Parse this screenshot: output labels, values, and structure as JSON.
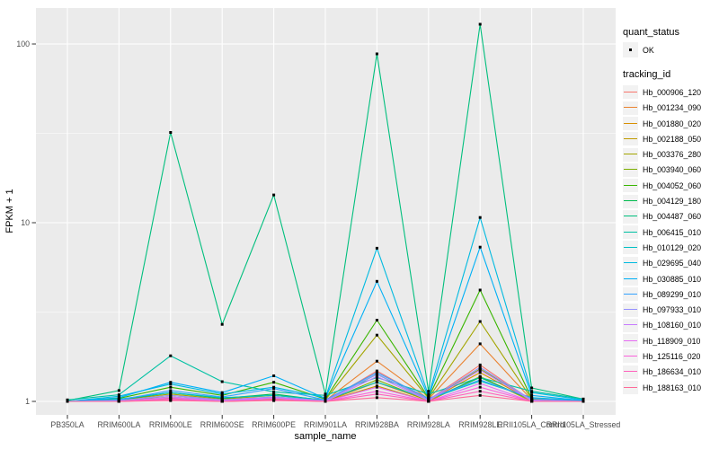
{
  "chart_data": {
    "type": "line",
    "title": "",
    "xlabel": "sample_name",
    "ylabel": "FPKM + 1",
    "y_scale": "log10",
    "y_ticks": [
      1,
      10,
      100
    ],
    "y_minor_ticks": [
      3.1623,
      31.623
    ],
    "ylim": [
      0.9,
      160
    ],
    "grid": "white major/minor on grey panel",
    "legend_position": "right",
    "point_color": "#000000",
    "categories": [
      "PB350LA",
      "RRIM600LA",
      "RRIM600LE",
      "RRIM600SE",
      "RRIM600PE",
      "RRIM901LA",
      "RRIM928BA",
      "RRIM928LA",
      "RRIM928LE",
      "RRII105LA_Control",
      "RRII105LA_Stressed"
    ],
    "series": [
      {
        "name": "Hb_000906_120",
        "color": "#F8766D",
        "values": [
          1.0,
          1.0,
          1.04,
          1.01,
          1.03,
          1.0,
          1.48,
          1.02,
          1.6,
          1.01,
          1.0
        ]
      },
      {
        "name": "Hb_001234_090",
        "color": "#EA8331",
        "values": [
          1.0,
          1.01,
          1.08,
          1.02,
          1.06,
          1.01,
          1.68,
          1.03,
          2.1,
          1.02,
          1.01
        ]
      },
      {
        "name": "Hb_001880_020",
        "color": "#D89000",
        "values": [
          1.0,
          1.0,
          1.05,
          1.01,
          1.04,
          1.0,
          1.28,
          1.01,
          1.45,
          1.01,
          1.0
        ]
      },
      {
        "name": "Hb_002188_050",
        "color": "#C09B00",
        "values": [
          1.0,
          1.0,
          1.04,
          1.0,
          1.03,
          1.0,
          1.22,
          1.0,
          1.38,
          1.0,
          1.0
        ]
      },
      {
        "name": "Hb_003376_280",
        "color": "#A3A500",
        "values": [
          1.0,
          1.02,
          1.1,
          1.03,
          1.08,
          1.02,
          2.35,
          1.04,
          2.8,
          1.03,
          1.01
        ]
      },
      {
        "name": "Hb_003940_060",
        "color": "#7CAE00",
        "values": [
          1.0,
          1.01,
          1.06,
          1.01,
          1.05,
          1.0,
          1.32,
          1.01,
          1.52,
          1.01,
          1.0
        ]
      },
      {
        "name": "Hb_004052_060",
        "color": "#39B600",
        "values": [
          1.0,
          1.04,
          1.2,
          1.08,
          1.28,
          1.03,
          2.85,
          1.05,
          4.2,
          1.04,
          1.01
        ]
      },
      {
        "name": "Hb_004129_180",
        "color": "#00BB4E",
        "values": [
          1.0,
          1.02,
          1.12,
          1.04,
          1.1,
          1.01,
          1.42,
          1.02,
          1.36,
          1.02,
          1.0
        ]
      },
      {
        "name": "Hb_004487_060",
        "color": "#00BF7D",
        "values": [
          1.01,
          1.15,
          32.0,
          2.7,
          14.3,
          1.1,
          88.0,
          1.14,
          129.0,
          1.19,
          1.03
        ]
      },
      {
        "name": "Hb_006415_010",
        "color": "#00C1A3",
        "values": [
          1.02,
          1.09,
          1.8,
          1.29,
          1.13,
          1.08,
          1.36,
          1.1,
          1.36,
          1.14,
          1.03
        ]
      },
      {
        "name": "Hb_010129_020",
        "color": "#00BFC4",
        "values": [
          1.0,
          1.03,
          1.12,
          1.05,
          1.08,
          1.02,
          1.28,
          1.03,
          1.3,
          1.05,
          1.01
        ]
      },
      {
        "name": "Hb_029695_040",
        "color": "#00BAE0",
        "values": [
          1.0,
          1.07,
          1.25,
          1.1,
          1.2,
          1.05,
          7.2,
          1.08,
          10.7,
          1.12,
          1.02
        ]
      },
      {
        "name": "Hb_030885_010",
        "color": "#00B0F6",
        "values": [
          1.0,
          1.05,
          1.28,
          1.12,
          1.39,
          1.04,
          4.7,
          1.06,
          7.3,
          1.08,
          1.01
        ]
      },
      {
        "name": "Hb_089299_010",
        "color": "#35A2FF",
        "values": [
          1.0,
          1.02,
          1.15,
          1.06,
          1.18,
          1.02,
          1.45,
          1.04,
          1.32,
          1.04,
          1.0
        ]
      },
      {
        "name": "Hb_097933_010",
        "color": "#9590FF",
        "values": [
          1.0,
          1.01,
          1.08,
          1.02,
          1.06,
          1.01,
          1.42,
          1.02,
          1.55,
          1.02,
          1.0
        ]
      },
      {
        "name": "Hb_108160_010",
        "color": "#C77CFF",
        "values": [
          1.0,
          1.0,
          1.06,
          1.01,
          1.05,
          1.0,
          1.38,
          1.01,
          1.5,
          1.01,
          1.0
        ]
      },
      {
        "name": "Hb_118909_010",
        "color": "#E76BF3",
        "values": [
          1.0,
          1.0,
          1.05,
          1.0,
          1.04,
          1.0,
          1.2,
          1.0,
          1.26,
          1.0,
          1.0
        ]
      },
      {
        "name": "Hb_125116_020",
        "color": "#FA62DB",
        "values": [
          1.0,
          1.0,
          1.03,
          1.0,
          1.02,
          1.0,
          1.14,
          1.0,
          1.2,
          1.0,
          1.0
        ]
      },
      {
        "name": "Hb_186634_010",
        "color": "#FF62BC",
        "values": [
          1.0,
          1.0,
          1.02,
          1.0,
          1.02,
          1.0,
          1.1,
          1.0,
          1.14,
          1.0,
          1.0
        ]
      },
      {
        "name": "Hb_188163_010",
        "color": "#FF6A98",
        "values": [
          1.0,
          1.0,
          1.01,
          1.0,
          1.01,
          1.0,
          1.05,
          1.0,
          1.08,
          1.0,
          1.0
        ]
      }
    ]
  },
  "legend": {
    "quant_status_title": "quant_status",
    "quant_status_items": [
      "OK"
    ],
    "tracking_id_title": "tracking_id"
  },
  "colors": {
    "background": "#FFFFFF",
    "panel_bg": "#EBEBEB",
    "grid": "#FFFFFF",
    "tick": "#333333",
    "tick_label": "#4D4D4D",
    "axis_title": "#000000",
    "legend_key_bg": "#F2F2F2",
    "point": "#000000"
  }
}
